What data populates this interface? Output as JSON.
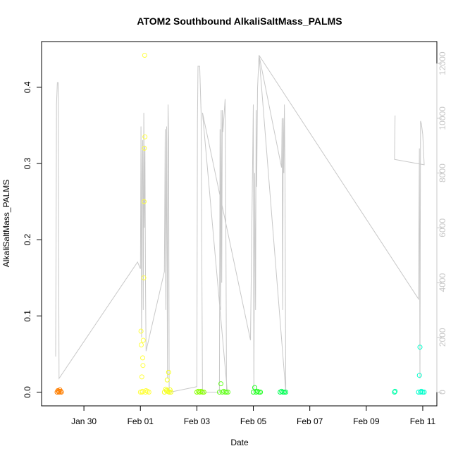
{
  "chart_data": {
    "type": "scatter",
    "title": "ATOM2 Southbound AlkaliSaltMass_PALMS",
    "xlabel": "Date",
    "ylabel": "AlkaliSaltMass_PALMS",
    "x_ticks": [
      "Jan 30",
      "Feb 01",
      "Feb 03",
      "Feb 05",
      "Feb 07",
      "Feb 09",
      "Feb 11"
    ],
    "x_tick_days": [
      30,
      32,
      34,
      36,
      38,
      40,
      42
    ],
    "xlim_days": [
      28.5,
      42.5
    ],
    "ylim": [
      -0.018,
      0.46
    ],
    "y_ticks": [
      0.0,
      0.1,
      0.2,
      0.3,
      0.4
    ],
    "y_tick_labels": [
      "0.0",
      "0.1",
      "0.2",
      "0.3",
      "0.4"
    ],
    "right_axis": {
      "label": "",
      "ylim": [
        -500,
        12800
      ],
      "ticks": [
        0,
        2000,
        4000,
        6000,
        8000,
        10000,
        12000
      ],
      "tick_labels": [
        "0",
        "2000",
        "4000",
        "6000",
        "8000",
        "10000",
        "12000"
      ],
      "color": "#c8c8c8"
    },
    "grid": false,
    "series": [
      {
        "color": "#ff7f00",
        "points": [
          [
            29.05,
            0.0
          ],
          [
            29.08,
            0.002
          ],
          [
            29.1,
            0.001
          ],
          [
            29.12,
            0.0
          ],
          [
            29.15,
            0.003
          ],
          [
            29.18,
            0.001
          ],
          [
            29.2,
            0.0
          ]
        ]
      },
      {
        "color": "#ffff40",
        "points": [
          [
            32.0,
            0.0
          ],
          [
            32.02,
            0.08
          ],
          [
            32.03,
            0.062
          ],
          [
            32.05,
            0.02
          ],
          [
            32.06,
            0.0
          ],
          [
            32.07,
            0.001
          ],
          [
            32.08,
            0.045
          ],
          [
            32.09,
            0.035
          ],
          [
            32.1,
            0.068
          ],
          [
            32.12,
            0.15
          ],
          [
            32.13,
            0.25
          ],
          [
            32.14,
            0.32
          ],
          [
            32.15,
            0.442
          ],
          [
            32.16,
            0.335
          ],
          [
            32.18,
            0.0
          ],
          [
            32.2,
            0.002
          ],
          [
            32.25,
            0.001
          ],
          [
            32.3,
            0.0
          ]
        ]
      },
      {
        "color": "#f5ff1f",
        "points": [
          [
            32.85,
            0.0
          ],
          [
            32.9,
            0.004
          ],
          [
            32.92,
            0.002
          ],
          [
            32.95,
            0.016
          ],
          [
            32.97,
            0.001
          ],
          [
            33.0,
            0.026
          ],
          [
            33.02,
            0.0
          ],
          [
            33.05,
            0.003
          ],
          [
            33.08,
            0.0
          ]
        ]
      },
      {
        "color": "#88ff00",
        "points": [
          [
            34.0,
            0.0
          ],
          [
            34.05,
            0.001
          ],
          [
            34.1,
            0.0
          ],
          [
            34.15,
            0.001
          ],
          [
            34.2,
            0.0
          ],
          [
            34.25,
            0.0
          ]
        ]
      },
      {
        "color": "#66ff22",
        "points": [
          [
            34.8,
            0.0
          ],
          [
            34.85,
            0.011
          ],
          [
            34.9,
            0.0
          ],
          [
            34.95,
            0.001
          ],
          [
            35.0,
            0.0
          ],
          [
            35.05,
            0.0
          ],
          [
            35.1,
            0.0
          ]
        ]
      },
      {
        "color": "#22ff22",
        "points": [
          [
            36.0,
            0.0
          ],
          [
            36.05,
            0.006
          ],
          [
            36.1,
            0.0
          ],
          [
            36.15,
            0.001
          ],
          [
            36.2,
            0.0
          ],
          [
            36.25,
            0.0
          ]
        ]
      },
      {
        "color": "#00ff55",
        "points": [
          [
            36.95,
            0.0
          ],
          [
            37.0,
            0.001
          ],
          [
            37.05,
            0.0
          ],
          [
            37.1,
            0.0
          ],
          [
            37.15,
            0.0
          ]
        ]
      },
      {
        "color": "#00ffaa",
        "points": [
          [
            41.0,
            0.0
          ],
          [
            41.02,
            0.001
          ]
        ]
      },
      {
        "color": "#00ffcc",
        "points": [
          [
            41.85,
            0.0
          ],
          [
            41.88,
            0.022
          ],
          [
            41.9,
            0.059
          ],
          [
            41.92,
            0.0
          ],
          [
            41.95,
            0.001
          ],
          [
            42.0,
            0.0
          ],
          [
            42.05,
            0.0
          ]
        ]
      }
    ],
    "secondary_line": {
      "color": "#c8c8c8",
      "points": [
        [
          29.0,
          1300
        ],
        [
          29.03,
          10500
        ],
        [
          29.06,
          11300
        ],
        [
          29.09,
          11300
        ],
        [
          29.12,
          500
        ],
        [
          31.9,
          4750
        ],
        [
          32.0,
          4500
        ],
        [
          32.02,
          9700
        ],
        [
          32.04,
          2000
        ],
        [
          32.06,
          8000
        ],
        [
          32.08,
          9200
        ],
        [
          32.1,
          3000
        ],
        [
          32.12,
          10200
        ],
        [
          32.14,
          6000
        ],
        [
          32.16,
          9000
        ],
        [
          32.18,
          4000
        ],
        [
          32.2,
          1500
        ],
        [
          32.85,
          4400
        ],
        [
          32.88,
          9600
        ],
        [
          32.9,
          3000
        ],
        [
          32.93,
          9700
        ],
        [
          32.96,
          500
        ],
        [
          32.98,
          10500
        ],
        [
          33.0,
          9300
        ],
        [
          33.02,
          0
        ],
        [
          33.05,
          0
        ],
        [
          34.0,
          200
        ],
        [
          34.02,
          9800
        ],
        [
          34.04,
          11900
        ],
        [
          34.06,
          11900
        ],
        [
          34.1,
          11900
        ],
        [
          34.15,
          10200
        ],
        [
          34.2,
          0
        ],
        [
          34.8,
          0
        ],
        [
          34.82,
          9600
        ],
        [
          34.84,
          3000
        ],
        [
          34.86,
          10300
        ],
        [
          34.88,
          4000
        ],
        [
          34.9,
          10300
        ],
        [
          34.92,
          9500
        ],
        [
          35.0,
          10700
        ],
        [
          35.02,
          7500
        ],
        [
          35.05,
          100
        ],
        [
          35.08,
          0
        ],
        [
          34.2,
          10200
        ],
        [
          35.9,
          1900
        ],
        [
          36.0,
          10500
        ],
        [
          36.02,
          0
        ],
        [
          36.05,
          8000
        ],
        [
          36.08,
          3000
        ],
        [
          36.1,
          10300
        ],
        [
          36.12,
          7500
        ],
        [
          36.15,
          11100
        ],
        [
          36.2,
          12300
        ],
        [
          37.0,
          8200
        ],
        [
          37.02,
          10000
        ],
        [
          37.04,
          3000
        ],
        [
          37.06,
          10000
        ],
        [
          37.08,
          8000
        ],
        [
          37.1,
          10500
        ],
        [
          37.12,
          8200
        ],
        [
          37.15,
          0
        ],
        [
          36.2,
          12300
        ],
        [
          41.85,
          3400
        ],
        [
          41.88,
          8900
        ],
        [
          41.9,
          500
        ],
        [
          41.92,
          9900
        ],
        [
          41.95,
          9800
        ],
        [
          42.0,
          9400
        ],
        [
          42.05,
          8300
        ],
        [
          41.0,
          8500
        ],
        [
          41.02,
          10100
        ]
      ]
    }
  }
}
